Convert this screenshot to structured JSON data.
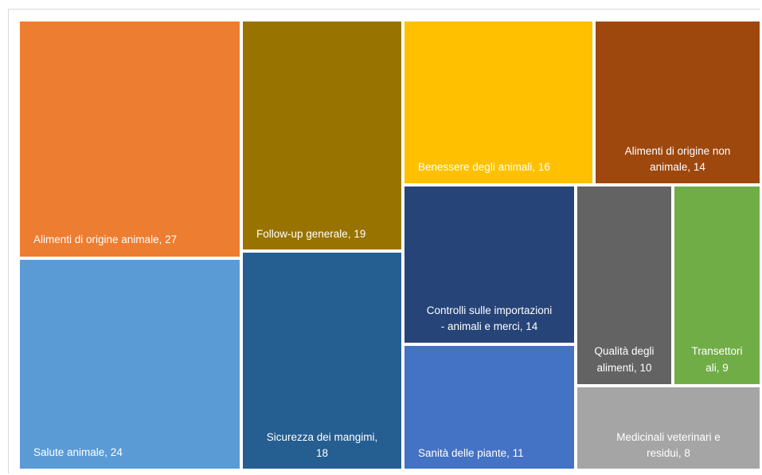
{
  "chart_data": {
    "type": "treemap",
    "title": "",
    "items": [
      {
        "label": "Alimenti di origine animale, 27",
        "value": 27,
        "color": "#ED7D31"
      },
      {
        "label": "Salute animale, 24",
        "value": 24,
        "color": "#5B9BD5"
      },
      {
        "label": "Follow-up generale, 19",
        "value": 19,
        "color": "#997300"
      },
      {
        "label": "Sicurezza dei mangimi, 18",
        "value": 18,
        "color": "#255E91"
      },
      {
        "label": "Benessere degli animali, 16",
        "value": 16,
        "color": "#FFC000"
      },
      {
        "label": "Alimenti di origine non animale, 14",
        "value": 14,
        "color": "#9E480E"
      },
      {
        "label": "Controlli sulle importazioni - animali e merci, 14",
        "value": 14,
        "color": "#264478"
      },
      {
        "label": "Sanità delle piante, 11",
        "value": 11,
        "color": "#4472C4"
      },
      {
        "label": "Qualità degli alimenti, 10",
        "value": 10,
        "color": "#636363"
      },
      {
        "label": "Transettori ali, 9",
        "value": 9,
        "color": "#70AD47"
      },
      {
        "label": "Medicinali veterinari e residui, 8",
        "value": 8,
        "color": "#A5A5A5"
      }
    ]
  }
}
